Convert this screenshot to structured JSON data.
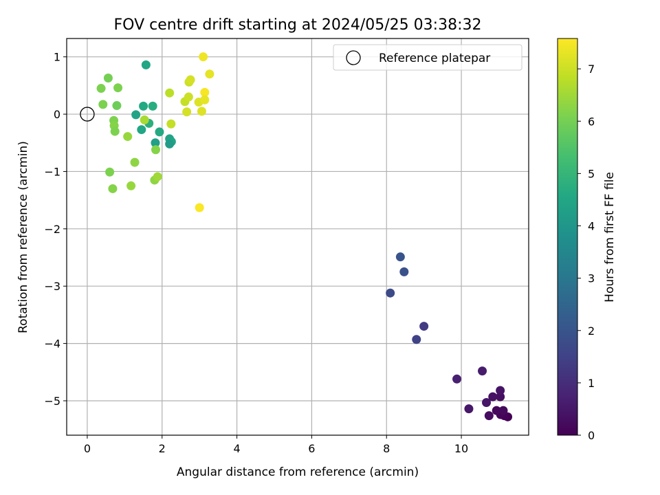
{
  "chart_data": {
    "type": "scatter",
    "title": "FOV centre drift starting at 2024/05/25 03:38:32",
    "xlabel": "Angular distance from reference (arcmin)",
    "ylabel": "Rotation from reference (arcmin)",
    "xlim": [
      -0.55,
      11.8
    ],
    "ylim": [
      -5.6,
      1.32
    ],
    "xticks": [
      0,
      2,
      4,
      6,
      8,
      10
    ],
    "yticks": [
      -5,
      -4,
      -3,
      -2,
      -1,
      0,
      1
    ],
    "xtick_labels": [
      "0",
      "2",
      "4",
      "6",
      "8",
      "10"
    ],
    "ytick_labels": [
      "−5",
      "−4",
      "−3",
      "−2",
      "−1",
      "0",
      "1"
    ],
    "grid": true,
    "legend": {
      "placement": "upper right",
      "entries": [
        "Reference platepar"
      ]
    },
    "reference_point": {
      "x": 0,
      "y": 0
    },
    "colorbar": {
      "label": "Hours from first FF file",
      "colormap": "viridis",
      "range": [
        0,
        7.58
      ],
      "ticks": [
        0,
        1,
        2,
        3,
        4,
        5,
        6,
        7
      ],
      "tick_labels": [
        "0",
        "1",
        "2",
        "3",
        "4",
        "5",
        "6",
        "7"
      ]
    },
    "points": [
      {
        "x": 11.24,
        "y": -5.28,
        "c": 0.0
      },
      {
        "x": 11.15,
        "y": -5.26,
        "c": 0.05
      },
      {
        "x": 11.05,
        "y": -5.24,
        "c": 0.1
      },
      {
        "x": 10.94,
        "y": -5.17,
        "c": 0.15
      },
      {
        "x": 11.12,
        "y": -5.17,
        "c": 0.2
      },
      {
        "x": 10.74,
        "y": -5.26,
        "c": 0.25
      },
      {
        "x": 11.04,
        "y": -4.93,
        "c": 0.3
      },
      {
        "x": 10.84,
        "y": -4.93,
        "c": 0.35
      },
      {
        "x": 11.04,
        "y": -4.82,
        "c": 0.4
      },
      {
        "x": 10.67,
        "y": -5.03,
        "c": 0.45
      },
      {
        "x": 10.2,
        "y": -5.14,
        "c": 0.5
      },
      {
        "x": 10.56,
        "y": -4.48,
        "c": 0.6
      },
      {
        "x": 9.88,
        "y": -4.62,
        "c": 0.7
      },
      {
        "x": 9.0,
        "y": -3.7,
        "c": 1.3
      },
      {
        "x": 8.8,
        "y": -3.93,
        "c": 1.5
      },
      {
        "x": 8.1,
        "y": -3.12,
        "c": 1.7
      },
      {
        "x": 8.47,
        "y": -2.75,
        "c": 1.9
      },
      {
        "x": 8.37,
        "y": -2.49,
        "c": 2.0
      },
      {
        "x": 1.57,
        "y": 0.86,
        "c": 4.5
      },
      {
        "x": 1.3,
        "y": -0.01,
        "c": 4.4
      },
      {
        "x": 1.45,
        "y": -0.27,
        "c": 4.5
      },
      {
        "x": 1.5,
        "y": 0.14,
        "c": 4.6
      },
      {
        "x": 1.75,
        "y": 0.14,
        "c": 4.7
      },
      {
        "x": 1.65,
        "y": -0.16,
        "c": 4.8
      },
      {
        "x": 1.93,
        "y": -0.31,
        "c": 4.6
      },
      {
        "x": 1.82,
        "y": -0.5,
        "c": 4.3
      },
      {
        "x": 2.2,
        "y": -0.43,
        "c": 4.4
      },
      {
        "x": 2.25,
        "y": -0.48,
        "c": 4.5
      },
      {
        "x": 2.2,
        "y": -0.52,
        "c": 4.2
      },
      {
        "x": 0.37,
        "y": 0.45,
        "c": 6.1
      },
      {
        "x": 0.42,
        "y": 0.17,
        "c": 6.1
      },
      {
        "x": 0.56,
        "y": 0.63,
        "c": 6.0
      },
      {
        "x": 0.82,
        "y": 0.46,
        "c": 6.1
      },
      {
        "x": 0.79,
        "y": 0.15,
        "c": 5.9
      },
      {
        "x": 0.71,
        "y": -0.11,
        "c": 6.1
      },
      {
        "x": 0.72,
        "y": -0.2,
        "c": 6.2
      },
      {
        "x": 0.74,
        "y": -0.3,
        "c": 6.1
      },
      {
        "x": 1.08,
        "y": -0.39,
        "c": 6.4
      },
      {
        "x": 1.53,
        "y": -0.1,
        "c": 6.6
      },
      {
        "x": 1.27,
        "y": -0.84,
        "c": 6.3
      },
      {
        "x": 1.83,
        "y": -0.62,
        "c": 6.2
      },
      {
        "x": 0.6,
        "y": -1.01,
        "c": 6.1
      },
      {
        "x": 0.68,
        "y": -1.3,
        "c": 6.2
      },
      {
        "x": 1.17,
        "y": -1.25,
        "c": 6.4
      },
      {
        "x": 1.8,
        "y": -1.15,
        "c": 6.3
      },
      {
        "x": 1.88,
        "y": -1.09,
        "c": 6.5
      },
      {
        "x": 2.2,
        "y": 0.37,
        "c": 6.8
      },
      {
        "x": 2.24,
        "y": -0.17,
        "c": 6.9
      },
      {
        "x": 2.61,
        "y": 0.22,
        "c": 6.9
      },
      {
        "x": 2.71,
        "y": 0.3,
        "c": 7.0
      },
      {
        "x": 2.72,
        "y": 0.56,
        "c": 7.0
      },
      {
        "x": 2.76,
        "y": 0.6,
        "c": 7.1
      },
      {
        "x": 2.66,
        "y": 0.04,
        "c": 7.1
      },
      {
        "x": 2.98,
        "y": 0.21,
        "c": 7.2
      },
      {
        "x": 3.06,
        "y": 0.05,
        "c": 7.2
      },
      {
        "x": 3.14,
        "y": 0.38,
        "c": 7.5
      },
      {
        "x": 3.14,
        "y": 0.25,
        "c": 7.3
      },
      {
        "x": 3.27,
        "y": 0.7,
        "c": 7.3
      },
      {
        "x": 3.1,
        "y": 1.0,
        "c": 7.4
      },
      {
        "x": 3.0,
        "y": -1.63,
        "c": 7.55
      }
    ]
  }
}
